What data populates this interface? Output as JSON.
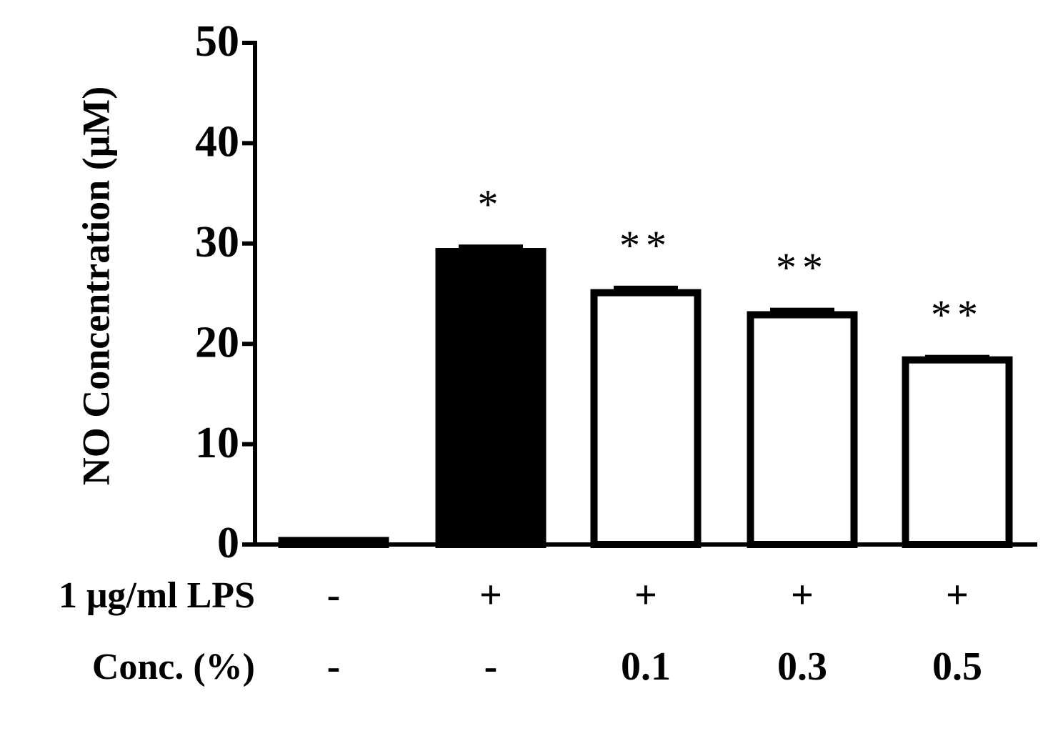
{
  "chart_data": {
    "type": "bar",
    "y_label": "NO Concentration (μM)",
    "series": [
      {
        "values": [
          0.4,
          29.2,
          25.1,
          22.9,
          18.4
        ],
        "errors": [
          0.1,
          0.7,
          0.7,
          0.7,
          0.5
        ],
        "colors": [
          "#ffffff",
          "#000000",
          "#ffffff",
          "#ffffff",
          "#ffffff"
        ],
        "edge_color": "#000000"
      }
    ],
    "annotations": [
      null,
      "*",
      "**",
      "**",
      "**"
    ],
    "category_rows": [
      {
        "label": "1 μg/ml LPS",
        "values": [
          "-",
          "+",
          "+",
          "+",
          "+"
        ]
      },
      {
        "label": "Conc. (%)",
        "values": [
          "-",
          "-",
          "0.1",
          "0.3",
          "0.5"
        ]
      }
    ],
    "ylim": [
      0,
      50
    ],
    "yticks": [
      0,
      10,
      20,
      30,
      40,
      50
    ]
  }
}
